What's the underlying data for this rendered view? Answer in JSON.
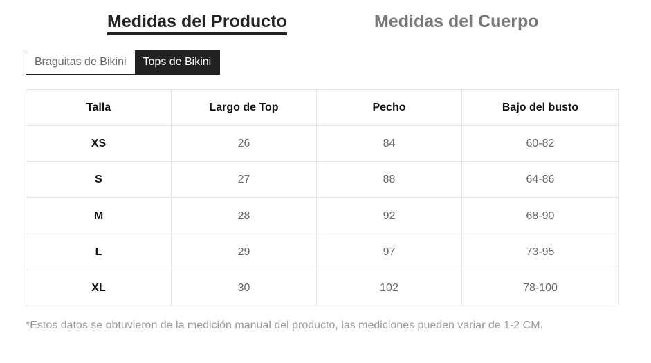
{
  "main_tabs": [
    {
      "label": "Medidas del Producto",
      "active": true
    },
    {
      "label": "Medidas del Cuerpo",
      "active": false
    }
  ],
  "sub_tabs": [
    {
      "label": "Braguitas de Bikini",
      "active": false
    },
    {
      "label": "Tops de Bikini",
      "active": true
    }
  ],
  "table": {
    "headers": [
      "Talla",
      "Largo de Top",
      "Pecho",
      "Bajo del busto"
    ],
    "rows": [
      [
        "XS",
        "26",
        "84",
        "60-82"
      ],
      [
        "S",
        "27",
        "88",
        "64-86"
      ],
      [
        "M",
        "28",
        "92",
        "68-90"
      ],
      [
        "L",
        "29",
        "97",
        "73-95"
      ],
      [
        "XL",
        "30",
        "102",
        "78-100"
      ]
    ]
  },
  "footnote": "*Estos datos se obtuvieron de la medición manual del producto, las mediciones pueden variar de 1-2 CM.",
  "colors": {
    "active_tab": "#222222",
    "inactive_text": "#777777",
    "border": "#e5e5e5"
  }
}
